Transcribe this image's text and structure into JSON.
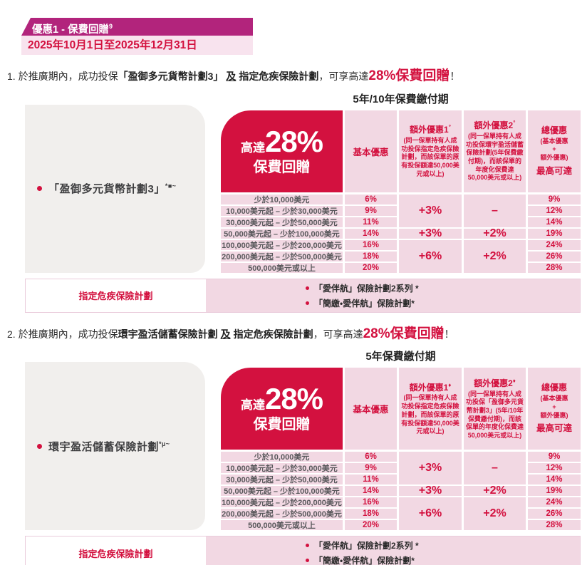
{
  "colors": {
    "magenta": "#b2247c",
    "crimson": "#d3113f",
    "light_pink": "#f8e3ee",
    "cell_pink": "#f2d8e3",
    "panel_gray": "#f1efed"
  },
  "header": {
    "title": "優惠1 - 保費回贈",
    "title_sup": "9",
    "date_range": "2025年10月1日至2025年12月31日"
  },
  "sections": [
    {
      "number": "1.",
      "intro": {
        "pre": "於推廣期內，成功投保",
        "plan": "「盈御多元貨幣計劃3」",
        "conj": "及",
        "target": "指定危疾保險計劃",
        "mid": "，可享高達",
        "highlight": "28%保費回贈",
        "end": "！"
      },
      "period_title": "5年/10年保費繳付期",
      "plan_label": "「盈御多元貨幣計劃3」",
      "plan_sup": "*■~",
      "badge": {
        "prefix": "高達",
        "value": "28%",
        "suffix": "保費回贈"
      },
      "columns": {
        "basic_label": "基本優惠",
        "extra1_label": "額外優惠1",
        "extra1_sup": "°",
        "extra1_desc": "(同一保單持有人成功投保指定危疾保險計劃，而該保單的原有投保額達50,000美元或以上)",
        "extra2_label": "額外優惠2",
        "extra2_sup": "°",
        "extra2_desc": "(同一保單持有人成功投保環宇盈活儲蓄保險計劃(5年保費繳付期)，而該保單的年度化保費達50,000美元或以上)",
        "total_label": "總優惠",
        "total_desc": [
          "(基本優惠",
          "+",
          "額外優惠)"
        ],
        "total_max": "最高可達"
      },
      "rows": {
        "bands": [
          "少於10,000美元",
          "10,000美元起 – 少於30,000美元",
          "30,000美元起 – 少於50,000美元",
          "50,000美元起 – 少於100,000美元",
          "100,000美元起 – 少於200,000美元",
          "200,000美元起 – 少於500,000美元",
          "500,000美元或以上"
        ],
        "basic": [
          "6%",
          "9%",
          "11%",
          "14%",
          "16%",
          "18%",
          "20%"
        ],
        "total": [
          "9%",
          "12%",
          "14%",
          "19%",
          "24%",
          "26%",
          "28%"
        ]
      },
      "extra_groups": [
        {
          "span": 3,
          "extra1": "+3%",
          "extra2": "–"
        },
        {
          "span": 1,
          "extra1": "+3%",
          "extra2": "+2%"
        },
        {
          "span": 3,
          "extra1": "+6%",
          "extra2": "+2%"
        }
      ],
      "footer": {
        "label": "指定危疾保險計劃",
        "items": [
          "「愛伴航」保險計劃2系列 *",
          "「簡繳•愛伴航」保險計劃*"
        ]
      }
    },
    {
      "number": "2.",
      "intro": {
        "pre": "於推廣期內，成功投保",
        "plan": "環宇盈活儲蓄保險計劃",
        "conj": "及",
        "target": "指定危疾保險計劃",
        "mid": "，可享高達",
        "highlight": "28%保費回贈",
        "end": "！"
      },
      "period_title": "5年保費繳付期",
      "plan_label": "環宇盈活儲蓄保險計劃",
      "plan_sup": "*µ~",
      "badge": {
        "prefix": "高達",
        "value": "28%",
        "suffix": "保費回贈"
      },
      "columns": {
        "basic_label": "基本優惠",
        "extra1_label": "額外優惠1",
        "extra1_sup": "♦",
        "extra1_desc": "(同一保單持有人成功投保指定危疾保險計劃，而該保單的原有投保額達50,000美元或以上)",
        "extra2_label": "額外優惠2",
        "extra2_sup": "♦",
        "extra2_desc": "(同一保單持有人成功投保「盈御多元貨幣計劃3」(5年/10年保費繳付期)，而該保單的年度化保費達50,000美元或以上)",
        "total_label": "總優惠",
        "total_desc": [
          "(基本優惠",
          "+",
          "額外優惠)"
        ],
        "total_max": "最高可達"
      },
      "rows": {
        "bands": [
          "少於10,000美元",
          "10,000美元起 – 少於30,000美元",
          "30,000美元起 – 少於50,000美元",
          "50,000美元起 – 少於100,000美元",
          "100,000美元起 – 少於200,000美元",
          "200,000美元起 – 少於500,000美元",
          "500,000美元或以上"
        ],
        "basic": [
          "6%",
          "9%",
          "11%",
          "14%",
          "16%",
          "18%",
          "20%"
        ],
        "total": [
          "9%",
          "12%",
          "14%",
          "19%",
          "24%",
          "26%",
          "28%"
        ]
      },
      "extra_groups": [
        {
          "span": 3,
          "extra1": "+3%",
          "extra2": "–"
        },
        {
          "span": 1,
          "extra1": "+3%",
          "extra2": "+2%"
        },
        {
          "span": 3,
          "extra1": "+6%",
          "extra2": "+2%"
        }
      ],
      "footer": {
        "label": "指定危疾保險計劃",
        "items": [
          "「愛伴航」保險計劃2系列 *",
          "「簡繳•愛伴航」保險計劃*"
        ]
      }
    }
  ]
}
